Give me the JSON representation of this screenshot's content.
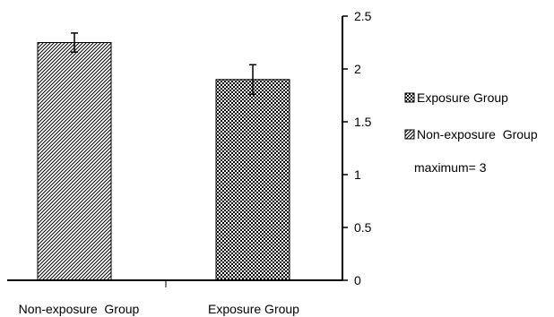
{
  "chart_data": {
    "type": "bar",
    "categories": [
      "Non-exposure  Group",
      "Exposure Group"
    ],
    "series": [
      {
        "name": "Non-exposure  Group",
        "pattern": "diagonal-hatch",
        "values": [
          2.25,
          null
        ],
        "errors": [
          0.09,
          null
        ]
      },
      {
        "name": "Exposure Group",
        "pattern": "checkerboard",
        "values": [
          null,
          1.9
        ],
        "errors": [
          null,
          0.14
        ]
      }
    ],
    "ylim": [
      0,
      2.5
    ],
    "y_ticks": [
      "0",
      "0.5",
      "1",
      "1.5",
      "2",
      "2.5"
    ],
    "y_axis_side": "right",
    "grid": false,
    "legend_position": "right",
    "legend": [
      {
        "label": "Exposure Group",
        "pattern": "checkerboard"
      },
      {
        "label": "Non-exposure  Group",
        "pattern": "diagonal-hatch"
      }
    ],
    "annotation": "maximum= 3",
    "colors": {
      "bar_fill": "#000000",
      "bar_background": "#ffffff",
      "axis": "#000000"
    }
  }
}
